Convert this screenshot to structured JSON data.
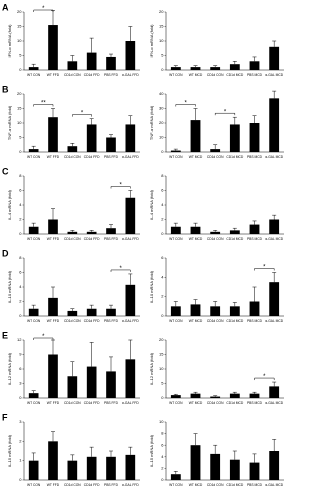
{
  "chart_data": [
    {
      "type": "bar",
      "label": "A",
      "y_label": "IFN-α mRNA (fold)",
      "categories": [
        "WT CON",
        "WT FFD",
        "CD1d CON",
        "CD1d FFD",
        "PBS FFD",
        "α-GAL FFD"
      ],
      "values": [
        1,
        15.5,
        3,
        6,
        4.5,
        10
      ],
      "errors": [
        1,
        5,
        2,
        5,
        1,
        5
      ],
      "ylim": [
        0,
        20
      ],
      "yticks": [
        0,
        5,
        10,
        15,
        20
      ],
      "color": "#000000",
      "annotations": [
        {
          "between": [
            "WT CON",
            "WT FFD"
          ],
          "text": "*"
        }
      ]
    },
    {
      "type": "bar",
      "y_label": "IFN-α mRNA (fold)",
      "categories": [
        "WT CON",
        "WT MCD",
        "CD1d CON",
        "CD1d MCD",
        "PBS MCD",
        "α-GAL MCD"
      ],
      "values": [
        1,
        1,
        1,
        2,
        3,
        8
      ],
      "errors": [
        0.5,
        0.5,
        0.5,
        1,
        1.5,
        2
      ],
      "ylim": [
        0,
        20
      ],
      "yticks": [
        0,
        5,
        10,
        15,
        20
      ],
      "color": "#000000",
      "annotations": []
    },
    {
      "type": "bar",
      "label": "B",
      "y_label": "TNF-α mRNA (fold)",
      "categories": [
        "WT CON",
        "WT FFD",
        "CD1d CON",
        "CD1d FFD",
        "PBS FFD",
        "α-GAL FFD"
      ],
      "values": [
        1,
        12,
        2,
        9.5,
        5,
        9.5
      ],
      "errors": [
        1,
        3,
        1,
        2,
        1,
        3
      ],
      "ylim": [
        0,
        20
      ],
      "yticks": [
        0,
        5,
        10,
        15,
        20
      ],
      "color": "#000000",
      "annotations": [
        {
          "between": [
            "WT CON",
            "WT FFD"
          ],
          "text": "**"
        },
        {
          "between": [
            "CD1d CON",
            "CD1d FFD"
          ],
          "text": "*"
        }
      ]
    },
    {
      "type": "bar",
      "y_label": "TNF-α mRNA (fold)",
      "categories": [
        "WT CON",
        "WT MCD",
        "CD1d CON",
        "CD1d MCD",
        "PBS MCD",
        "α-GAL MCD"
      ],
      "values": [
        1,
        22,
        2,
        19,
        20,
        37
      ],
      "errors": [
        1,
        8,
        3,
        5,
        5,
        5
      ],
      "ylim": [
        0,
        40
      ],
      "yticks": [
        0,
        10,
        20,
        30,
        40
      ],
      "color": "#000000",
      "annotations": [
        {
          "between": [
            "WT CON",
            "WT MCD"
          ],
          "text": "*"
        },
        {
          "between": [
            "CD1d CON",
            "CD1d MCD"
          ],
          "text": "*"
        }
      ]
    },
    {
      "type": "bar",
      "label": "C",
      "y_label": "IL-4 mRNA (fold)",
      "categories": [
        "WT CON",
        "WT FFD",
        "CD1d CON",
        "CD1d FFD",
        "PBS FFD",
        "α-GAL FFD"
      ],
      "values": [
        1,
        2,
        0.3,
        0.3,
        0.8,
        5
      ],
      "errors": [
        0.5,
        1.5,
        0.2,
        0.2,
        0.5,
        1
      ],
      "ylim": [
        0,
        8
      ],
      "yticks": [
        0,
        2,
        4,
        6,
        8
      ],
      "color": "#000000",
      "annotations": [
        {
          "between": [
            "PBS FFD",
            "α-GAL FFD"
          ],
          "text": "*"
        }
      ]
    },
    {
      "type": "bar",
      "y_label": "IL-4 mRNA (fold)",
      "categories": [
        "WT CON",
        "WT MCD",
        "CD1d CON",
        "CD1d MCD",
        "PBS MCD",
        "α-GAL MCD"
      ],
      "values": [
        1,
        1,
        0.3,
        0.5,
        1.3,
        2
      ],
      "errors": [
        0.5,
        0.5,
        0.2,
        0.3,
        0.5,
        0.6
      ],
      "ylim": [
        0,
        8
      ],
      "yticks": [
        0,
        2,
        4,
        6,
        8
      ],
      "color": "#000000",
      "annotations": []
    },
    {
      "type": "bar",
      "label": "D",
      "y_label": "IL-10 mRNA (fold)",
      "categories": [
        "WT CON",
        "WT FFD",
        "CD1d CON",
        "CD1d FFD",
        "PBS FFD",
        "α-GAL FFD"
      ],
      "values": [
        1,
        2.5,
        0.7,
        1,
        1,
        4.3
      ],
      "errors": [
        0.5,
        1.5,
        0.3,
        0.5,
        0.5,
        1.5
      ],
      "ylim": [
        0,
        8
      ],
      "yticks": [
        0,
        2,
        4,
        6,
        8
      ],
      "color": "#000000",
      "annotations": [
        {
          "between": [
            "PBS FFD",
            "α-GAL FFD"
          ],
          "text": "*"
        }
      ]
    },
    {
      "type": "bar",
      "y_label": "IL-10 mRNA (fold)",
      "categories": [
        "WT CON",
        "WT MCD",
        "CD1d CON",
        "CD1d MCD",
        "PBS MCD",
        "α-GAL MCD"
      ],
      "values": [
        1,
        1.2,
        1,
        1,
        1.5,
        3.5
      ],
      "errors": [
        0.5,
        0.5,
        0.5,
        0.4,
        1.5,
        1
      ],
      "ylim": [
        0,
        6
      ],
      "yticks": [
        0,
        2,
        4,
        6
      ],
      "color": "#000000",
      "annotations": [
        {
          "between": [
            "PBS MCD",
            "α-GAL MCD"
          ],
          "text": "*"
        }
      ]
    },
    {
      "type": "bar",
      "label": "E",
      "y_label": "IL-12 mRNA (fold)",
      "categories": [
        "WT CON",
        "WT FFD",
        "CD1d CON",
        "CD1d FFD",
        "PBS FFD",
        "α-GAL FFD"
      ],
      "values": [
        1,
        9,
        4.5,
        6.5,
        5.5,
        8
      ],
      "errors": [
        0.5,
        3,
        3,
        5,
        3,
        4
      ],
      "ylim": [
        0,
        12
      ],
      "yticks": [
        0,
        3,
        6,
        9,
        12
      ],
      "color": "#000000",
      "annotations": [
        {
          "between": [
            "WT CON",
            "WT FFD"
          ],
          "text": "*"
        }
      ]
    },
    {
      "type": "bar",
      "y_label": "IL-12 mRNA (fold)",
      "categories": [
        "WT CON",
        "WT MCD",
        "CD1d CON",
        "CD1d MCD",
        "PBS MCD",
        "α-GAL MCD"
      ],
      "values": [
        1,
        1.5,
        0.5,
        1.5,
        1.5,
        4
      ],
      "errors": [
        0.3,
        0.5,
        0.3,
        0.5,
        0.5,
        1.5
      ],
      "ylim": [
        0,
        20
      ],
      "yticks": [
        0,
        5,
        10,
        15,
        20
      ],
      "color": "#000000",
      "annotations": [
        {
          "between": [
            "PBS MCD",
            "α-GAL MCD"
          ],
          "text": "*"
        }
      ]
    },
    {
      "type": "bar",
      "label": "F",
      "y_label": "IL-15 mRNA (fold)",
      "categories": [
        "WT CON",
        "WT FFD",
        "CD1d CON",
        "CD1d FFD",
        "PBS FFD",
        "α-GAL FFD"
      ],
      "values": [
        1,
        2,
        1,
        1.2,
        1.2,
        1.3
      ],
      "errors": [
        0.4,
        0.5,
        0.3,
        0.5,
        0.3,
        0.4
      ],
      "ylim": [
        0,
        3
      ],
      "yticks": [
        0,
        1,
        2,
        3
      ],
      "color": "#000000",
      "annotations": []
    },
    {
      "type": "bar",
      "y_label": "IL-15 mRNA (fold)",
      "categories": [
        "WT CON",
        "WT MCD",
        "CD1d CON",
        "CD1d MCD",
        "PBS MCD",
        "α-GAL MCD"
      ],
      "values": [
        1,
        6,
        4.5,
        3.5,
        3,
        5
      ],
      "errors": [
        0.5,
        2,
        1.5,
        1.5,
        1.5,
        2
      ],
      "ylim": [
        0,
        10
      ],
      "yticks": [
        0,
        2,
        4,
        6,
        8,
        10
      ],
      "color": "#000000",
      "annotations": []
    }
  ]
}
